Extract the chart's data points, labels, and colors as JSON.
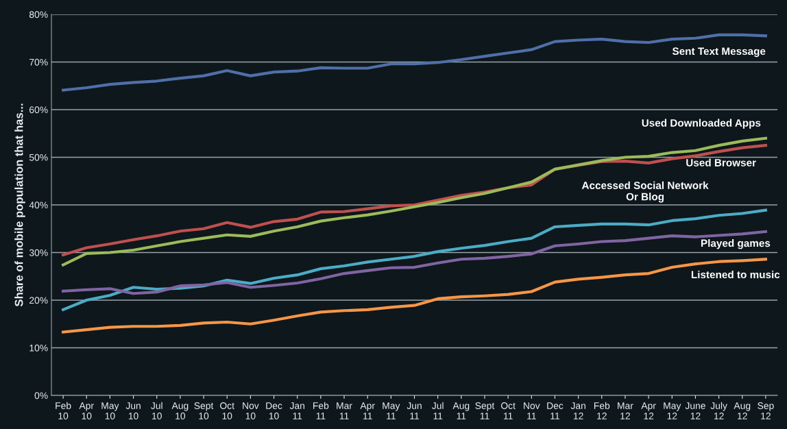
{
  "chart_data": {
    "type": "line",
    "ylabel": "Share of mobile population that has...",
    "categories": [
      "Feb\n10",
      "Apr\n10",
      "May\n10",
      "Jun\n10",
      "Jul\n10",
      "Aug\n10",
      "Sept\n10",
      "Oct\n10",
      "Nov\n10",
      "Dec\n10",
      "Jan\n11",
      "Feb\n11",
      "Mar\n11",
      "Apr\n11",
      "May\n11",
      "Jun\n11",
      "Jul\n11",
      "Aug\n11",
      "Sept\n11",
      "Oct\n11",
      "Nov\n11",
      "Dec\n11",
      "Jan\n12",
      "Feb\n12",
      "Mar\n12",
      "Apr\n12",
      "May\n12",
      "June\n12",
      "July\n12",
      "Aug\n12",
      "Sep\n12"
    ],
    "series": [
      {
        "name": "Sent Text Message",
        "color": "#4f6fa8",
        "values": [
          64.1,
          64.6,
          65.3,
          65.7,
          66.0,
          66.6,
          67.1,
          68.2,
          67.1,
          67.9,
          68.1,
          68.8,
          68.7,
          68.7,
          69.6,
          69.6,
          69.9,
          70.5,
          71.2,
          71.9,
          72.6,
          74.3,
          74.6,
          74.8,
          74.3,
          74.1,
          74.8,
          75.0,
          75.7,
          75.7,
          75.5
        ]
      },
      {
        "name": "Used Browser",
        "color": "#c0504d",
        "values": [
          29.5,
          31.0,
          31.8,
          32.7,
          33.5,
          34.5,
          35.0,
          36.3,
          35.3,
          36.5,
          37.0,
          38.5,
          38.6,
          39.2,
          39.8,
          40.0,
          41.0,
          42.0,
          42.7,
          43.6,
          44.2,
          47.5,
          48.3,
          49.1,
          49.2,
          48.8,
          49.7,
          50.3,
          51.2,
          52.0,
          52.5
        ]
      },
      {
        "name": "Used Downloaded Apps",
        "color": "#9bbb59",
        "values": [
          27.4,
          29.8,
          30.0,
          30.5,
          31.4,
          32.3,
          33.0,
          33.7,
          33.4,
          34.5,
          35.4,
          36.6,
          37.3,
          37.9,
          38.7,
          39.6,
          40.5,
          41.5,
          42.4,
          43.6,
          44.8,
          47.5,
          48.4,
          49.3,
          50.0,
          50.2,
          51.0,
          51.4,
          52.5,
          53.4,
          54.0
        ]
      },
      {
        "name": "Accessed Social Network\nOr Blog",
        "color": "#4bacc6",
        "values": [
          18.0,
          20.0,
          21.0,
          22.7,
          22.3,
          22.5,
          23.0,
          24.2,
          23.5,
          24.6,
          25.3,
          26.6,
          27.2,
          28.0,
          28.6,
          29.2,
          30.2,
          30.9,
          31.5,
          32.3,
          33.0,
          35.4,
          35.7,
          36.0,
          36.0,
          35.8,
          36.7,
          37.1,
          37.8,
          38.2,
          38.9
        ]
      },
      {
        "name": "Played games",
        "color": "#8064a2",
        "values": [
          21.9,
          22.2,
          22.4,
          21.4,
          21.7,
          23.0,
          23.2,
          23.7,
          22.7,
          23.1,
          23.6,
          24.5,
          25.6,
          26.2,
          26.8,
          26.9,
          27.8,
          28.6,
          28.8,
          29.2,
          29.7,
          31.4,
          31.8,
          32.3,
          32.5,
          33.0,
          33.5,
          33.3,
          33.6,
          33.9,
          34.4
        ]
      },
      {
        "name": "Listened to music",
        "color": "#f79646",
        "values": [
          13.3,
          13.8,
          14.3,
          14.5,
          14.5,
          14.7,
          15.2,
          15.4,
          15.0,
          15.8,
          16.7,
          17.5,
          17.8,
          18.0,
          18.5,
          18.9,
          20.3,
          20.7,
          20.9,
          21.2,
          21.8,
          23.8,
          24.4,
          24.8,
          25.3,
          25.6,
          26.9,
          27.6,
          28.1,
          28.3,
          28.6
        ]
      }
    ],
    "ylim": [
      0,
      80
    ],
    "yticks": [
      {
        "value": 0,
        "label": "0%"
      },
      {
        "value": 10,
        "label": "10%"
      },
      {
        "value": 20,
        "label": "20%"
      },
      {
        "value": 30,
        "label": "30%"
      },
      {
        "value": 40,
        "label": "40%"
      },
      {
        "value": 50,
        "label": "50%"
      },
      {
        "value": 60,
        "label": "60%"
      },
      {
        "value": 70,
        "label": "70%"
      },
      {
        "value": 80,
        "label": "80%"
      }
    ],
    "grid": "y",
    "legend": false,
    "marker": "none",
    "line_style": "solid"
  }
}
